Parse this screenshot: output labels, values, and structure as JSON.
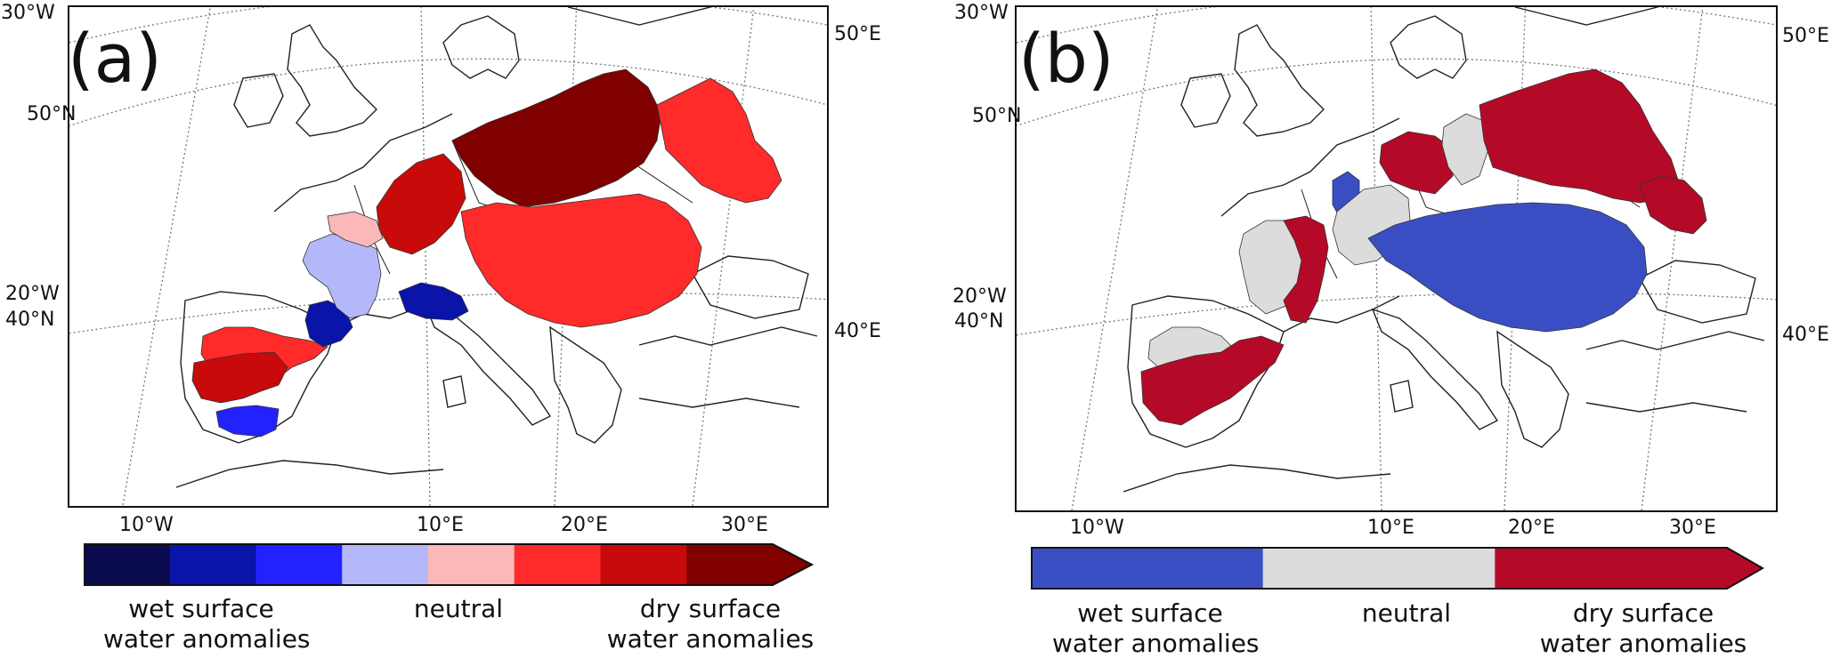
{
  "panels": [
    {
      "letter": "(a)",
      "graticule_labels": {
        "lat_30w": "30°W",
        "lat_50n": "50°N",
        "lat_20w": "20°W",
        "lat_40n": "40°N",
        "lon_50e": "50°E",
        "lon_40e": "40°E",
        "bottom": [
          "10°W",
          "10°E",
          "20°E",
          "30°E"
        ]
      },
      "colorbar": {
        "classes": [
          "#0a0a4e",
          "#0a14a8",
          "#2222ff",
          "#b4b8fb",
          "#fbb8b8",
          "#ff2a2a",
          "#c80a0a",
          "#800000"
        ],
        "labels": {
          "left_line1": "wet surface",
          "left_line2": "water anomalies",
          "center": "neutral",
          "right_line1": "dry surface",
          "right_line2": "water anomalies"
        }
      },
      "regions": [
        {
          "name": "south-portugal-spain",
          "class": 2
        },
        {
          "name": "iberia-center",
          "class": 5
        },
        {
          "name": "iberia-west",
          "class": 6
        },
        {
          "name": "pyrenees-east",
          "class": 1
        },
        {
          "name": "rhone-basin",
          "class": 3
        },
        {
          "name": "seine-upper",
          "class": 4
        },
        {
          "name": "po-valley",
          "class": 1
        },
        {
          "name": "rhine-basin",
          "class": 6
        },
        {
          "name": "elbe-oder-vistula",
          "class": 7
        },
        {
          "name": "danube-east",
          "class": 5
        },
        {
          "name": "ukraine-west",
          "class": 5
        }
      ]
    },
    {
      "letter": "(b)",
      "graticule_labels": {
        "lat_30w": "30°W",
        "lat_50n": "50°N",
        "lat_20w": "20°W",
        "lat_40n": "40°N",
        "lon_50e": "50°E",
        "lon_40e": "40°E",
        "bottom": [
          "10°W",
          "10°E",
          "20°E",
          "30°E"
        ]
      },
      "colorbar": {
        "classes": [
          "#3a4ec4",
          "#dcdcdc",
          "#b40a28"
        ],
        "labels": {
          "left_line1": "wet surface",
          "left_line2": "water anomalies",
          "center": "neutral",
          "right_line1": "dry surface",
          "right_line2": "water anomalies"
        }
      },
      "regions": [
        {
          "name": "iberia-north",
          "class": 1
        },
        {
          "name": "iberia-south",
          "class": 2
        },
        {
          "name": "france-west",
          "class": 1
        },
        {
          "name": "rhone-basin",
          "class": 2
        },
        {
          "name": "meuse-basin",
          "class": 0
        },
        {
          "name": "rhine-basin",
          "class": 1
        },
        {
          "name": "weser-elbe-west",
          "class": 2
        },
        {
          "name": "elbe-center",
          "class": 1
        },
        {
          "name": "vistula-oder",
          "class": 2
        },
        {
          "name": "danube-basin",
          "class": 0
        },
        {
          "name": "dniester-basin",
          "class": 2
        }
      ]
    }
  ]
}
